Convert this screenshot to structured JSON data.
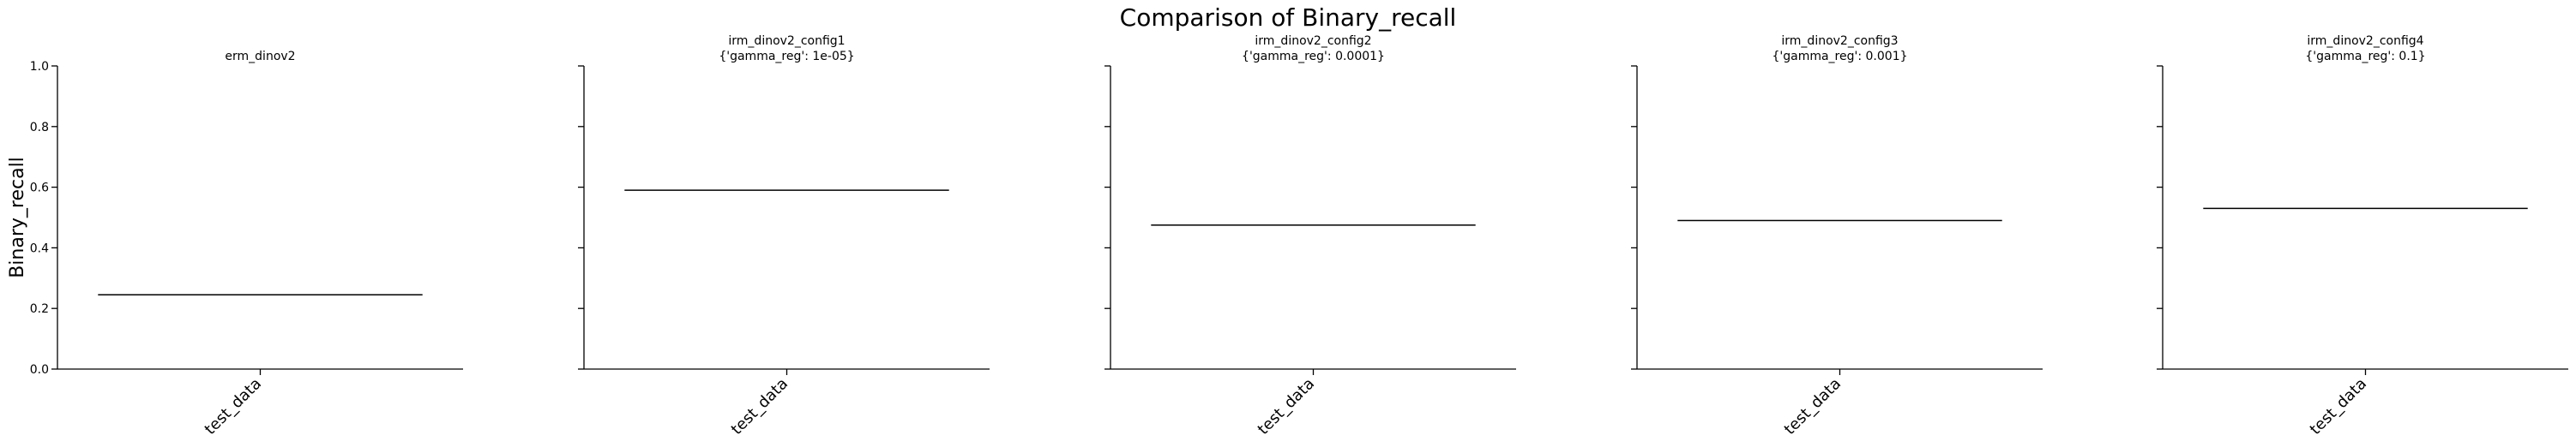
{
  "chart_data": {
    "type": "line",
    "title": "Comparison of Binary_recall",
    "ylabel": "Binary_recall",
    "ylim": [
      0,
      1
    ],
    "yticks": [
      0.0,
      0.2,
      0.4,
      0.6,
      0.8,
      1.0
    ],
    "ytick_labels": [
      "0.0",
      "0.2",
      "0.4",
      "0.6",
      "0.8",
      "1.0"
    ],
    "grid": false,
    "colors": {
      "line": "#000000",
      "axis": "#000000"
    },
    "panels": [
      {
        "title": "erm_dinov2",
        "subtitle": "",
        "categories": [
          "test_data"
        ],
        "values": [
          0.245
        ]
      },
      {
        "title": "irm_dinov2_config1",
        "subtitle": "{'gamma_reg': 1e-05}",
        "categories": [
          "test_data"
        ],
        "values": [
          0.59
        ]
      },
      {
        "title": "irm_dinov2_config2",
        "subtitle": "{'gamma_reg': 0.0001}",
        "categories": [
          "test_data"
        ],
        "values": [
          0.475
        ]
      },
      {
        "title": "irm_dinov2_config3",
        "subtitle": "{'gamma_reg': 0.001}",
        "categories": [
          "test_data"
        ],
        "values": [
          0.49
        ]
      },
      {
        "title": "irm_dinov2_config4",
        "subtitle": "{'gamma_reg': 0.1}",
        "categories": [
          "test_data"
        ],
        "values": [
          0.53
        ]
      }
    ]
  }
}
